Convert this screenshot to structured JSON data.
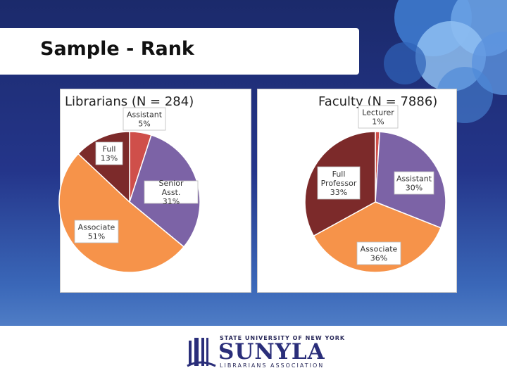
{
  "slide": {
    "title": "Sample - Rank"
  },
  "logo": {
    "top_line": "STATE UNIVERSITY OF NEW YORK",
    "name": "SUNYLA",
    "sub_line": "LIBRARIANS ASSOCIATION"
  },
  "colors": {
    "assistant_librarians": "#cf4f4a",
    "senior_asst": "#7c63a6",
    "associate": "#f6934a",
    "full": "#7c2a2a",
    "lecturer": "#cf4f4a",
    "assistant_faculty": "#7c63a6"
  },
  "chart_data": [
    {
      "type": "pie",
      "title": "Librarians (N = 284)",
      "slices": [
        {
          "label": "Assistant",
          "value": 5,
          "value_label": "5%",
          "color": "#cf4f4a"
        },
        {
          "label": "Senior Asst.",
          "value": 31,
          "value_label": "31%",
          "color": "#7c63a6"
        },
        {
          "label": "Associate",
          "value": 51,
          "value_label": "51%",
          "color": "#f6934a"
        },
        {
          "label": "Full",
          "value": 13,
          "value_label": "13%",
          "color": "#7c2a2a"
        }
      ]
    },
    {
      "type": "pie",
      "title": "Faculty (N = 7886)",
      "slices": [
        {
          "label": "Lecturer",
          "value": 1,
          "value_label": "1%",
          "color": "#cf4f4a"
        },
        {
          "label": "Assistant",
          "value": 30,
          "value_label": "30%",
          "color": "#7c63a6"
        },
        {
          "label": "Associate",
          "value": 36,
          "value_label": "36%",
          "color": "#f6934a"
        },
        {
          "label": "Full Professor",
          "value": 33,
          "value_label": "33%",
          "color": "#7c2a2a"
        }
      ]
    }
  ]
}
